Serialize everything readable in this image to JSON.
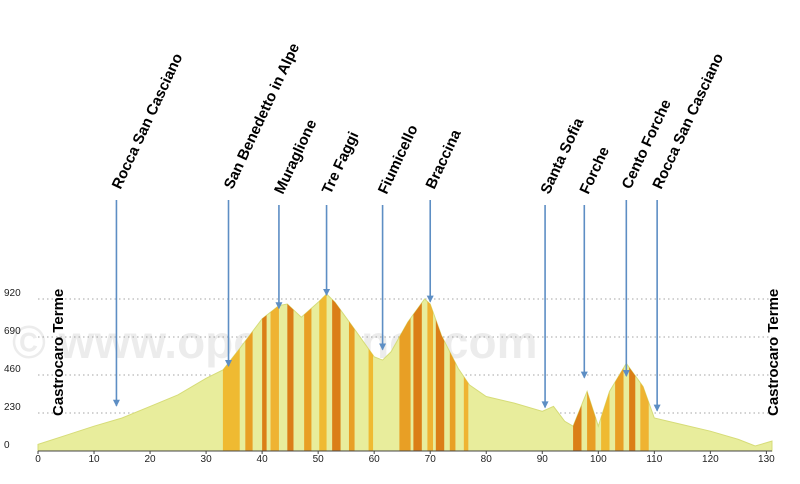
{
  "chart_data": {
    "type": "area",
    "xlim": [
      0,
      131
    ],
    "ylim": [
      0,
      920
    ],
    "x_ticks": [
      0,
      10,
      20,
      30,
      40,
      50,
      60,
      70,
      80,
      90,
      100,
      110,
      120,
      130
    ],
    "y_ticks": [
      0,
      230,
      460,
      690,
      920
    ],
    "grid": "horizontal dotted at y ticks",
    "profile": {
      "x": [
        0,
        5,
        10,
        15,
        20,
        25,
        30,
        33,
        36,
        40,
        43,
        44.5,
        47,
        50,
        51.5,
        53,
        56,
        60,
        61.5,
        63,
        66,
        69,
        70,
        72,
        75,
        77,
        80,
        85,
        90,
        92,
        94,
        95.5,
        98,
        100,
        102,
        105,
        108,
        110,
        115,
        120,
        125,
        128,
        131
      ],
      "y": [
        40,
        95,
        150,
        200,
        270,
        340,
        440,
        490,
        620,
        800,
        880,
        890,
        810,
        900,
        950,
        900,
        760,
        570,
        550,
        600,
        780,
        920,
        890,
        700,
        500,
        400,
        330,
        290,
        240,
        270,
        180,
        150,
        360,
        150,
        360,
        530,
        390,
        200,
        160,
        120,
        70,
        30,
        60
      ]
    },
    "color_bands": [
      {
        "from": 33,
        "to": 36,
        "color": "#f0b020"
      },
      {
        "from": 37,
        "to": 38.3,
        "color": "#e89010"
      },
      {
        "from": 40,
        "to": 40.8,
        "color": "#d86a00"
      },
      {
        "from": 41.5,
        "to": 43,
        "color": "#f0a820"
      },
      {
        "from": 44.5,
        "to": 45.6,
        "color": "#d86a00"
      },
      {
        "from": 47.5,
        "to": 48.8,
        "color": "#e89010"
      },
      {
        "from": 50.2,
        "to": 51.5,
        "color": "#f0b020"
      },
      {
        "from": 52.5,
        "to": 54,
        "color": "#d86a00"
      },
      {
        "from": 55.5,
        "to": 56.5,
        "color": "#e89010"
      },
      {
        "from": 59,
        "to": 59.8,
        "color": "#f0b020"
      },
      {
        "from": 64.5,
        "to": 66.5,
        "color": "#e89010"
      },
      {
        "from": 67,
        "to": 68.5,
        "color": "#d86a00"
      },
      {
        "from": 69.5,
        "to": 70.5,
        "color": "#f0a820"
      },
      {
        "from": 71,
        "to": 72.5,
        "color": "#d86a00"
      },
      {
        "from": 73.5,
        "to": 74.5,
        "color": "#e89010"
      },
      {
        "from": 76,
        "to": 76.8,
        "color": "#f0a820"
      },
      {
        "from": 95.5,
        "to": 97,
        "color": "#d86a00"
      },
      {
        "from": 98,
        "to": 99.5,
        "color": "#e89010"
      },
      {
        "from": 100.5,
        "to": 102,
        "color": "#f0b020"
      },
      {
        "from": 103,
        "to": 104.5,
        "color": "#e89010"
      },
      {
        "from": 105.5,
        "to": 106.6,
        "color": "#d86a00"
      },
      {
        "from": 107.5,
        "to": 109,
        "color": "#f0a820"
      }
    ],
    "places": [
      {
        "name": "Rocca San Casciano",
        "x": 14,
        "arrow_to": 250
      },
      {
        "name": "San Benedetto in Alpe",
        "x": 34,
        "arrow_to": 490
      },
      {
        "name": "Muraglione",
        "x": 43,
        "arrow_to": 840
      },
      {
        "name": "Tre Faggi",
        "x": 51.5,
        "arrow_to": 920
      },
      {
        "name": "Fiumicello",
        "x": 61.5,
        "arrow_to": 590
      },
      {
        "name": "Braccina",
        "x": 70,
        "arrow_to": 880
      },
      {
        "name": "Santa Sofia",
        "x": 90.5,
        "arrow_to": 240
      },
      {
        "name": "Forche",
        "x": 97.5,
        "arrow_to": 420
      },
      {
        "name": "Cento Forche",
        "x": 105,
        "arrow_to": 430
      },
      {
        "name": "Rocca San Casciano",
        "x": 110.5,
        "arrow_to": 220
      }
    ],
    "start_label": "Castrocaro Terme",
    "end_label": "Castrocaro Terme",
    "watermark": "© www.openrunner.com",
    "colors": {
      "base_fill": "#e8ed9c",
      "base_stroke": "#d6dc78",
      "arrow": "#5d8ec4",
      "grid": "#888888"
    }
  }
}
